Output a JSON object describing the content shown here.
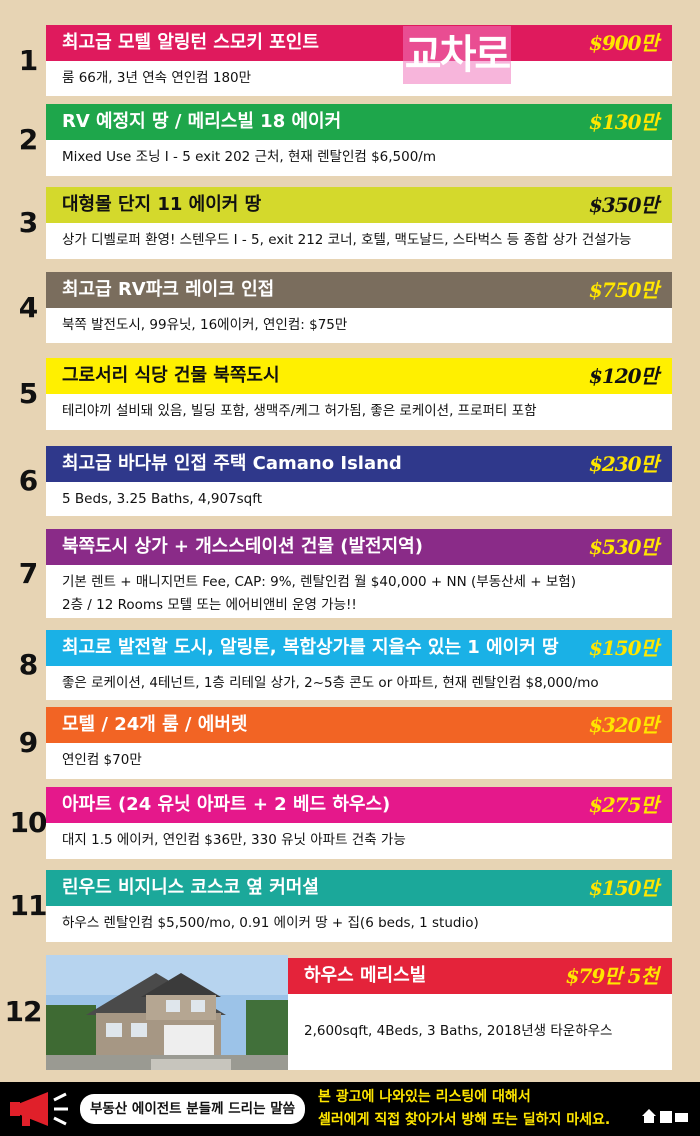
{
  "logo": "교차로",
  "listings": [
    {
      "number": "1",
      "title": "최고급 모텔 알링턴 스모키 포인트",
      "price": "$900만",
      "description": [
        "룸 66개, 3년 연속 연인컴 180만"
      ],
      "color": "#df1a5d",
      "title_color": "#ffffff",
      "price_color": "#ffe600"
    },
    {
      "number": "2",
      "title": "RV 예정지 땅 / 메리스빌 18 에이커",
      "price": "$130만",
      "description": [
        "Mixed Use 조닝 I - 5 exit 202 근처, 현재 렌탈인컴 $6,500/m"
      ],
      "color": "#1ea64b",
      "title_color": "#ffffff",
      "price_color": "#ffe600"
    },
    {
      "number": "3",
      "title": "대형몰 단지 11 에이커 땅",
      "price": "$350만",
      "description": [
        "상가 디벨로퍼 환영! 스텐우드 I - 5, exit 212 코너, 호텔, 맥도날드, 스타벅스 등 종합 상가 건설가능"
      ],
      "color": "#d4d92c",
      "title_color": "#111111",
      "price_color": "#111111"
    },
    {
      "number": "4",
      "title": "최고급 RV파크 레이크 인접",
      "price": "$750만",
      "description": [
        "북쪽 발전도시, 99유닛, 16에이커, 연인컴: $75만"
      ],
      "color": "#7a6d5d",
      "title_color": "#ffffff",
      "price_color": "#ffe600"
    },
    {
      "number": "5",
      "title": "그로서리 식당 건물 북쪽도시",
      "price": "$120만",
      "description": [
        "테리야끼 설비돼 있음, 빌딩 포함, 생맥주/케그 허가됨, 좋은 로케이션, 프로퍼티 포함"
      ],
      "color": "#fff000",
      "title_color": "#111111",
      "price_color": "#111111"
    },
    {
      "number": "6",
      "title": "최고급 바다뷰 인접 주택 Camano Island",
      "price": "$230만",
      "description": [
        "5 Beds, 3.25 Baths, 4,907sqft"
      ],
      "color": "#2f388b",
      "title_color": "#ffffff",
      "price_color": "#ffe600"
    },
    {
      "number": "7",
      "title": "북쪽도시 상가 + 개스스테이션 건물 (발전지역)",
      "price": "$530만",
      "description": [
        "기본 렌트 + 매니지먼트 Fee, CAP: 9%, 렌탈인컴 월 $40,000 + NN (부동산세 + 보험)",
        "2층 / 12 Rooms 모텔 또는 에어비앤비 운영 가능!!"
      ],
      "color": "#8a2b88",
      "title_color": "#ffffff",
      "price_color": "#ffe600"
    },
    {
      "number": "8",
      "title": "최고로 발전할 도시, 알링톤, 복합상가를 지을수 있는 1 에이커 땅",
      "price": "$150만",
      "description": [
        "좋은 로케이션, 4테넌트, 1층 리테일 상가, 2~5층 콘도 or 아파트, 현재 렌탈인컴 $8,000/mo"
      ],
      "color": "#1ab1e6",
      "title_color": "#ffffff",
      "price_color": "#ffe600"
    },
    {
      "number": "9",
      "title": "모텔 / 24개 룸 / 에버렛",
      "price": "$320만",
      "description": [
        "연인컴 $70만"
      ],
      "color": "#f26424",
      "title_color": "#ffffff",
      "price_color": "#ffe600"
    },
    {
      "number": "10",
      "title": "아파트 (24 유닛 아파트 + 2 베드 하우스)",
      "price": "$275만",
      "description": [
        "대지 1.5 에이커, 연인컴 $36만, 330 유닛 아파트 건축 가능"
      ],
      "color": "#e5188b",
      "title_color": "#ffffff",
      "price_color": "#ffe600"
    },
    {
      "number": "11",
      "title": "린우드 비지니스 코스코 옆 커머셜",
      "price": "$150만",
      "description": [
        "하우스 렌탈인컴 $5,500/mo, 0.91 에이커 땅 + 집(6 beds, 1 studio)"
      ],
      "color": "#1ba89a",
      "title_color": "#ffffff",
      "price_color": "#ffe600"
    },
    {
      "number": "12",
      "title": "하우스 메리스빌",
      "price": "$79만 5천",
      "description": [
        "2,600sqft,  4Beds, 3 Baths, 2018년생 타운하우스"
      ],
      "color": "#e4233a",
      "title_color": "#ffffff",
      "price_color": "#ffe600"
    }
  ],
  "footer": {
    "bubble": "부동산 에이전트 분들께 드리는 말씀",
    "message": [
      "본 광고에 나와있는 리스팅에 대해서",
      "셀러에게 직접 찾아가서 방해 또는 딜하지 마세요."
    ]
  }
}
